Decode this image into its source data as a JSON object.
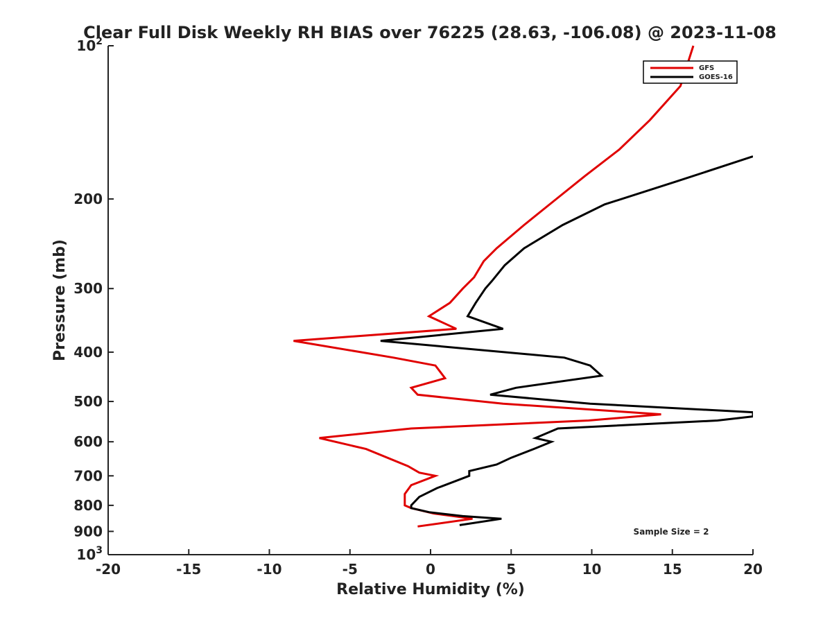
{
  "chart_data": {
    "type": "line",
    "title": "Clear Full Disk Weekly RH BIAS over 76225 (28.63, -106.08) @ 2023-11-08",
    "xlabel": "Relative Humidity (%)",
    "ylabel": "Pressure (mb)",
    "xlim": [
      -20,
      20
    ],
    "ylim": [
      100,
      1000
    ],
    "y_scale": "log",
    "y_inverted": true,
    "grid": false,
    "legend_position": "top-right",
    "x_ticks": [
      -20,
      -15,
      -10,
      -5,
      0,
      5,
      10,
      15,
      20
    ],
    "x_tick_labels": [
      "-20",
      "-15",
      "-10",
      "-5",
      "0",
      "5",
      "10",
      "15",
      "20"
    ],
    "y_ticks": [
      {
        "value": 100,
        "base": "10",
        "exp": "2"
      },
      {
        "value": 200,
        "label": "200"
      },
      {
        "value": 300,
        "label": "300"
      },
      {
        "value": 400,
        "label": "400"
      },
      {
        "value": 500,
        "label": "500"
      },
      {
        "value": 600,
        "label": "600"
      },
      {
        "value": 700,
        "label": "700"
      },
      {
        "value": 800,
        "label": "800"
      },
      {
        "value": 900,
        "label": "900"
      },
      {
        "value": 1000,
        "base": "10",
        "exp": "3"
      }
    ],
    "annotation": "Sample Size = 2",
    "series": [
      {
        "name": "GFS",
        "color": "#e00000",
        "points": [
          [
            16.3,
            100
          ],
          [
            15.5,
            120
          ],
          [
            13.6,
            140
          ],
          [
            11.7,
            160
          ],
          [
            9.6,
            180
          ],
          [
            7.8,
            200
          ],
          [
            5.8,
            225
          ],
          [
            4.1,
            250
          ],
          [
            3.3,
            265
          ],
          [
            2.7,
            285
          ],
          [
            2.0,
            300
          ],
          [
            1.2,
            320
          ],
          [
            -0.1,
            340
          ],
          [
            1.6,
            360
          ],
          [
            -8.5,
            380
          ],
          [
            -2.3,
            410
          ],
          [
            0.3,
            425
          ],
          [
            0.9,
            450
          ],
          [
            -1.2,
            470
          ],
          [
            -0.8,
            485
          ],
          [
            4.5,
            505
          ],
          [
            14.3,
            530
          ],
          [
            9.8,
            545
          ],
          [
            -1.2,
            565
          ],
          [
            -6.9,
            590
          ],
          [
            -4.0,
            620
          ],
          [
            -1.4,
            670
          ],
          [
            -0.7,
            690
          ],
          [
            0.3,
            700
          ],
          [
            -1.2,
            730
          ],
          [
            -1.6,
            760
          ],
          [
            -1.6,
            800
          ],
          [
            -1.2,
            810
          ],
          [
            0.2,
            830
          ],
          [
            2.6,
            850
          ],
          [
            -0.8,
            880
          ]
        ]
      },
      {
        "name": "GOES-16",
        "color": "#000000",
        "points": [
          [
            20.0,
            165
          ],
          [
            15.2,
            185
          ],
          [
            10.8,
            205
          ],
          [
            8.2,
            225
          ],
          [
            5.8,
            250
          ],
          [
            4.6,
            270
          ],
          [
            3.8,
            290
          ],
          [
            3.4,
            300
          ],
          [
            2.8,
            320
          ],
          [
            2.3,
            340
          ],
          [
            4.5,
            360
          ],
          [
            -3.1,
            380
          ],
          [
            8.3,
            410
          ],
          [
            9.9,
            425
          ],
          [
            10.6,
            445
          ],
          [
            5.3,
            470
          ],
          [
            3.7,
            485
          ],
          [
            9.9,
            505
          ],
          [
            20.0,
            525
          ],
          [
            20.0,
            535
          ],
          [
            17.8,
            545
          ],
          [
            7.9,
            565
          ],
          [
            6.5,
            590
          ],
          [
            7.5,
            600
          ],
          [
            6.4,
            620
          ],
          [
            5.0,
            645
          ],
          [
            4.1,
            665
          ],
          [
            2.4,
            685
          ],
          [
            2.4,
            700
          ],
          [
            0.4,
            740
          ],
          [
            -0.7,
            770
          ],
          [
            -1.2,
            800
          ],
          [
            -1.2,
            810
          ],
          [
            -0.1,
            825
          ],
          [
            2.0,
            840
          ],
          [
            4.4,
            850
          ],
          [
            1.8,
            875
          ]
        ]
      }
    ]
  }
}
